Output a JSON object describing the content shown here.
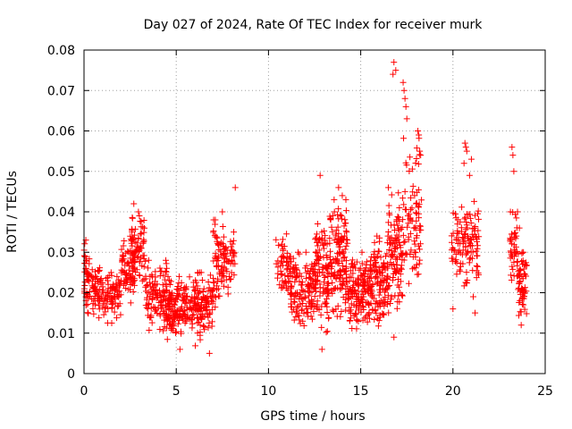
{
  "chart_data": {
    "type": "scatter",
    "title": "Day 027 of 2024, Rate Of TEC Index for receiver murk",
    "xlabel": "GPS time / hours",
    "ylabel": "ROTI / TECUs",
    "xlim": [
      0,
      25
    ],
    "ylim": [
      0,
      0.08
    ],
    "x_ticks": [
      0,
      5,
      10,
      15,
      20,
      25
    ],
    "x_tick_labels": [
      "0",
      "5",
      "10",
      "15",
      "20",
      "25"
    ],
    "y_ticks": [
      0,
      0.01,
      0.02,
      0.03,
      0.04,
      0.05,
      0.06,
      0.07,
      0.08
    ],
    "y_tick_labels": [
      "0",
      "0.01",
      "0.02",
      "0.03",
      "0.04",
      "0.05",
      "0.06",
      "0.07",
      "0.08"
    ],
    "grid": true,
    "marker": "+",
    "marker_color": "#ff0000",
    "series": [
      {
        "name": "ROTI",
        "clusters": [
          {
            "x_start": 0.0,
            "x_end": 0.3,
            "y_low": 0.012,
            "y_high": 0.033,
            "n": 40
          },
          {
            "x_start": 0.3,
            "x_end": 1.0,
            "y_low": 0.012,
            "y_high": 0.027,
            "n": 60
          },
          {
            "x_start": 1.0,
            "x_end": 2.0,
            "y_low": 0.011,
            "y_high": 0.025,
            "n": 80
          },
          {
            "x_start": 2.0,
            "x_end": 2.8,
            "y_low": 0.015,
            "y_high": 0.035,
            "n": 70
          },
          {
            "x_start": 2.5,
            "x_end": 3.3,
            "y_low": 0.02,
            "y_high": 0.04,
            "n": 70
          },
          {
            "x_start": 3.3,
            "x_end": 4.5,
            "y_low": 0.008,
            "y_high": 0.028,
            "n": 120
          },
          {
            "x_start": 4.5,
            "x_end": 5.5,
            "y_low": 0.007,
            "y_high": 0.024,
            "n": 120
          },
          {
            "x_start": 5.5,
            "x_end": 7.0,
            "y_low": 0.006,
            "y_high": 0.025,
            "n": 150
          },
          {
            "x_start": 7.0,
            "x_end": 7.6,
            "y_low": 0.012,
            "y_high": 0.038,
            "n": 70
          },
          {
            "x_start": 7.6,
            "x_end": 8.2,
            "y_low": 0.018,
            "y_high": 0.035,
            "n": 40
          },
          {
            "x_start": 10.4,
            "x_end": 11.2,
            "y_low": 0.015,
            "y_high": 0.035,
            "n": 60
          },
          {
            "x_start": 11.2,
            "x_end": 12.5,
            "y_low": 0.009,
            "y_high": 0.03,
            "n": 130
          },
          {
            "x_start": 12.5,
            "x_end": 13.3,
            "y_low": 0.007,
            "y_high": 0.038,
            "n": 110
          },
          {
            "x_start": 13.3,
            "x_end": 14.3,
            "y_low": 0.009,
            "y_high": 0.043,
            "n": 140
          },
          {
            "x_start": 14.3,
            "x_end": 15.5,
            "y_low": 0.008,
            "y_high": 0.03,
            "n": 150
          },
          {
            "x_start": 15.5,
            "x_end": 16.5,
            "y_low": 0.008,
            "y_high": 0.034,
            "n": 130
          },
          {
            "x_start": 16.5,
            "x_end": 17.3,
            "y_low": 0.01,
            "y_high": 0.045,
            "n": 100
          },
          {
            "x_start": 17.3,
            "x_end": 18.3,
            "y_low": 0.012,
            "y_high": 0.06,
            "n": 80
          },
          {
            "x_start": 19.9,
            "x_end": 20.5,
            "y_low": 0.018,
            "y_high": 0.043,
            "n": 40
          },
          {
            "x_start": 20.5,
            "x_end": 21.4,
            "y_low": 0.015,
            "y_high": 0.045,
            "n": 80
          },
          {
            "x_start": 23.1,
            "x_end": 23.5,
            "y_low": 0.02,
            "y_high": 0.04,
            "n": 40
          },
          {
            "x_start": 23.5,
            "x_end": 24.0,
            "y_low": 0.012,
            "y_high": 0.03,
            "n": 60
          }
        ],
        "points": [
          [
            8.2,
            0.046
          ],
          [
            12.8,
            0.049
          ],
          [
            13.8,
            0.046
          ],
          [
            16.8,
            0.077
          ],
          [
            16.9,
            0.075
          ],
          [
            16.75,
            0.074
          ],
          [
            17.3,
            0.072
          ],
          [
            17.35,
            0.07
          ],
          [
            17.4,
            0.068
          ],
          [
            17.45,
            0.066
          ],
          [
            17.5,
            0.063
          ],
          [
            18.1,
            0.06
          ],
          [
            18.15,
            0.059
          ],
          [
            18.2,
            0.055
          ],
          [
            18.25,
            0.054
          ],
          [
            20.65,
            0.057
          ],
          [
            20.7,
            0.056
          ],
          [
            20.75,
            0.055
          ],
          [
            20.6,
            0.052
          ],
          [
            23.2,
            0.056
          ],
          [
            23.25,
            0.054
          ],
          [
            23.3,
            0.05
          ],
          [
            21.0,
            0.053
          ],
          [
            20.9,
            0.049
          ],
          [
            21.2,
            0.015
          ],
          [
            2.7,
            0.042
          ],
          [
            2.95,
            0.04
          ],
          [
            3.0,
            0.039
          ],
          [
            7.5,
            0.04
          ],
          [
            14.0,
            0.044
          ],
          [
            16.5,
            0.046
          ],
          [
            17.4,
            0.045
          ],
          [
            18.0,
            0.042
          ],
          [
            23.5,
            0.04
          ],
          [
            23.6,
            0.036
          ],
          [
            0.1,
            0.033
          ],
          [
            0.05,
            0.029
          ],
          [
            12.9,
            0.006
          ],
          [
            6.8,
            0.005
          ],
          [
            5.2,
            0.006
          ],
          [
            16.8,
            0.009
          ],
          [
            21.1,
            0.019
          ],
          [
            20.0,
            0.016
          ],
          [
            23.9,
            0.027
          ],
          [
            23.7,
            0.012
          ]
        ]
      }
    ]
  }
}
